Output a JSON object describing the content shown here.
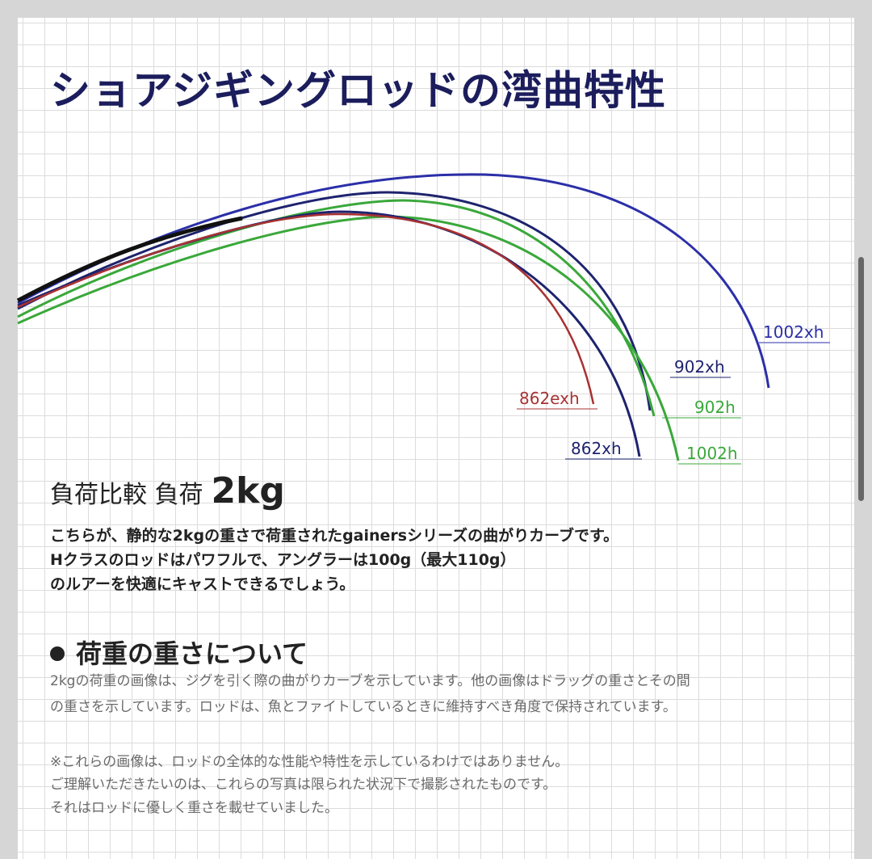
{
  "title": "ショアジギングロッドの湾曲特性",
  "diagram": {
    "labels": [
      "1002xh",
      "902xh",
      "902h",
      "862exh",
      "862xh",
      "1002h"
    ]
  },
  "load_heading": {
    "text": "負荷比較 負荷",
    "weight": "2kg"
  },
  "intro": [
    "こちらが、静的な2kgの重さで荷重されたgainersシリーズの曲がりカーブです。",
    "Hクラスのロッドはパワフルで、アングラーは100g（最大110g）",
    "のルアーを快適にキャストできるでしょう。"
  ],
  "section": {
    "heading": "荷重の重さについて",
    "paragraphs": [
      [
        "2kgの荷重の画像は、ジグを引く際の曲がりカーブを示しています。他の画像はドラッグの重さとその間",
        "の重さを示しています。ロッドは、魚とファイトしているときに維持すべき角度で保持されています。"
      ],
      [
        "※これらの画像は、ロッドの全体的な性能や特性を示しているわけではありません。",
        "ご理解いただきたいのは、これらの写真は限られた状況下で撮影されたものです。",
        "それはロッドに優しく重さを載せていました。"
      ]
    ]
  }
}
